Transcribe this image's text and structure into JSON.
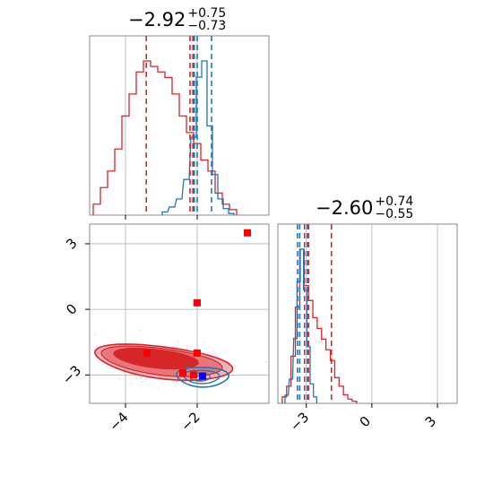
{
  "chart_data": {
    "type": "corner",
    "titles": [
      {
        "median": "−2.92",
        "plus": "+0.75",
        "minus": "−0.73"
      },
      {
        "median": "−2.60",
        "plus": "+0.74",
        "minus": "−0.55"
      }
    ],
    "param1": {
      "range": [
        -5.0,
        0.0
      ],
      "ticks": [
        {
          "v": -4,
          "label": "−4"
        },
        {
          "v": -2,
          "label": "−2"
        }
      ],
      "red_quantiles": [
        -3.42,
        -2.2,
        -2.12
      ],
      "blue_quantiles": [
        -2.08,
        -2.0,
        -1.6
      ],
      "red_hist": {
        "bins": [
          [
            -4.8,
            0.02
          ],
          [
            -4.6,
            0.05
          ],
          [
            -4.4,
            0.08
          ],
          [
            -4.2,
            0.12
          ],
          [
            -4.0,
            0.18
          ],
          [
            -3.8,
            0.22
          ],
          [
            -3.6,
            0.26
          ],
          [
            -3.4,
            0.28
          ],
          [
            -3.2,
            0.27
          ],
          [
            -3.0,
            0.26
          ],
          [
            -2.8,
            0.25
          ],
          [
            -2.6,
            0.22
          ],
          [
            -2.4,
            0.18
          ],
          [
            -2.2,
            0.15
          ],
          [
            -2.0,
            0.13
          ],
          [
            -1.8,
            0.1
          ],
          [
            -1.6,
            0.08
          ],
          [
            -1.4,
            0.04
          ],
          [
            -1.2,
            0.02
          ],
          [
            -1.0,
            0.01
          ]
        ],
        "width": 0.2
      },
      "blue_hist": {
        "bins": [
          [
            -2.9,
            0.02
          ],
          [
            -2.7,
            0.05
          ],
          [
            -2.5,
            0.1
          ],
          [
            -2.3,
            0.22
          ],
          [
            -2.1,
            0.48
          ],
          [
            -1.95,
            0.85
          ],
          [
            -1.8,
            0.95
          ],
          [
            -1.65,
            0.55
          ],
          [
            -1.5,
            0.25
          ],
          [
            -1.35,
            0.1
          ],
          [
            -1.2,
            0.04
          ],
          [
            -1.05,
            0.01
          ]
        ],
        "width": 0.15
      }
    },
    "param2": {
      "range": [
        -4.3,
        3.9
      ],
      "ticks": [
        {
          "v": -3,
          "label": "−3"
        },
        {
          "v": 0,
          "label": "0"
        },
        {
          "v": 3,
          "label": "3"
        }
      ],
      "red_quantiles": [
        -3.08,
        -2.9,
        -1.85
      ],
      "blue_quantiles": [
        -3.4,
        -3.3,
        -2.95
      ],
      "red_hist": {
        "bins": [
          [
            -4.0,
            0.03
          ],
          [
            -3.8,
            0.08
          ],
          [
            -3.6,
            0.22
          ],
          [
            -3.4,
            0.45
          ],
          [
            -3.2,
            0.72
          ],
          [
            -3.0,
            0.55
          ],
          [
            -2.8,
            0.48
          ],
          [
            -2.6,
            0.4
          ],
          [
            -2.4,
            0.35
          ],
          [
            -2.2,
            0.3
          ],
          [
            -2.0,
            0.25
          ],
          [
            -1.8,
            0.2
          ],
          [
            -1.6,
            0.12
          ],
          [
            -1.4,
            0.08
          ],
          [
            -1.2,
            0.04
          ],
          [
            -1.0,
            0.02
          ],
          [
            -0.8,
            0.01
          ]
        ],
        "width": 0.2
      },
      "blue_hist": {
        "bins": [
          [
            -3.9,
            0.05
          ],
          [
            -3.7,
            0.15
          ],
          [
            -3.5,
            0.4
          ],
          [
            -3.35,
            0.75
          ],
          [
            -3.2,
            0.95
          ],
          [
            -3.05,
            0.7
          ],
          [
            -2.9,
            0.35
          ],
          [
            -2.75,
            0.12
          ],
          [
            -2.6,
            0.04
          ]
        ],
        "width": 0.15
      }
    },
    "markers": {
      "red": [
        [
          -0.6,
          3.5
        ],
        [
          -2.0,
          0.3
        ],
        [
          -2.0,
          -2.0
        ],
        [
          -3.4,
          -2.0
        ],
        [
          -2.4,
          -2.9
        ],
        [
          -2.1,
          -3.0
        ]
      ],
      "blue": [
        [
          -1.85,
          -3.05
        ]
      ]
    },
    "colors": {
      "red": "#d62728",
      "blue": "#1f77b4",
      "grid": "#b0b0b0",
      "axis": "#888888"
    }
  }
}
